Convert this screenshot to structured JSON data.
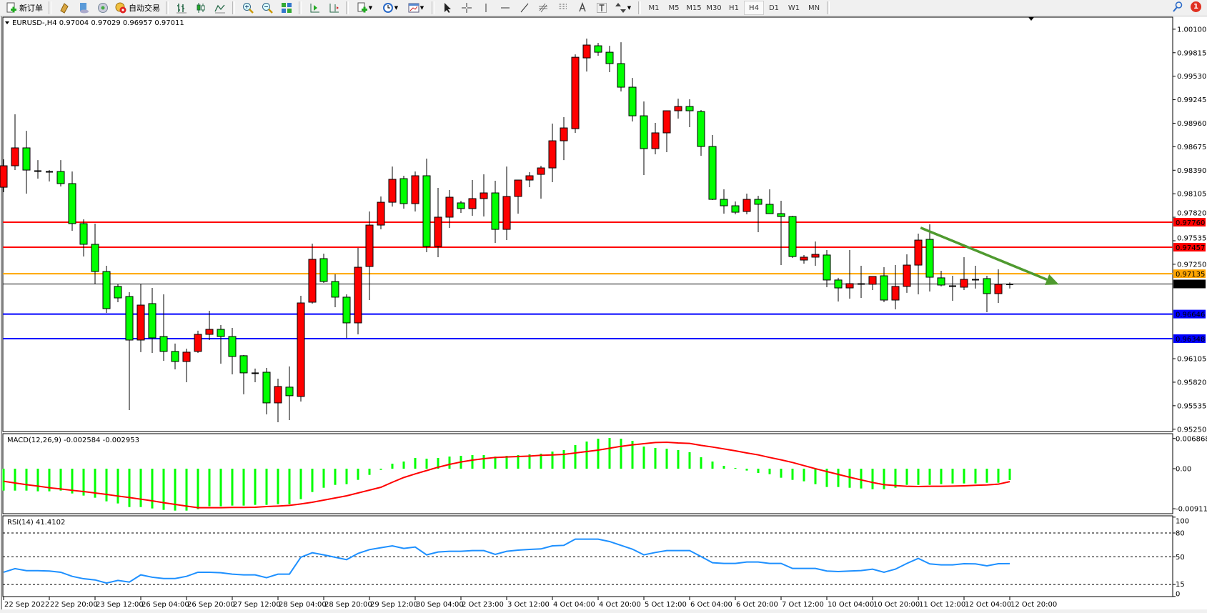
{
  "toolbar": {
    "new_order_label": "新订单",
    "auto_trading_label": "自动交易",
    "icons": [
      "new-order-icon",
      "market-watch-icon",
      "navigator-icon",
      "signals-icon",
      "auto-trading-icon",
      "bar-chart-icon",
      "candlestick-icon",
      "line-chart-icon",
      "zoom-in-icon",
      "zoom-out-icon",
      "tile-windows-icon",
      "auto-scroll-icon",
      "chart-shift-icon",
      "indicators-icon",
      "periods-icon",
      "templates-icon",
      "cursor-icon",
      "crosshair-icon",
      "vertical-line-icon",
      "horizontal-line-icon",
      "trendline-icon",
      "fibonacci-icon",
      "fibo-fan-icon",
      "text-icon",
      "text-label-icon",
      "arrows-icon"
    ],
    "timeframes": [
      "M1",
      "M5",
      "M15",
      "M30",
      "H1",
      "H4",
      "D1",
      "W1",
      "MN"
    ],
    "active_timeframe": "H4",
    "notification_count": "1"
  },
  "chart": {
    "header": "EURUSD-,H4  0.97004 0.97029 0.96957 0.97011",
    "symbol": "EURUSD-",
    "timeframe": "H4",
    "current": {
      "open": 0.97004,
      "high": 0.97029,
      "low": 0.96957,
      "close": 0.97011
    },
    "colors": {
      "up": "#ff0000",
      "down": "#00ff00",
      "outline": "#000000",
      "background": "#ffffff"
    }
  },
  "chart_data": [
    {
      "type": "candlestick",
      "title": "EURUSD-,H4",
      "ohlc": [
        [
          0.98184,
          0.98522,
          0.98124,
          0.98444
        ],
        [
          0.98444,
          0.99068,
          0.98392,
          0.98661
        ],
        [
          0.98661,
          0.98868,
          0.98106,
          0.98392
        ],
        [
          0.98384,
          0.98513,
          0.98288,
          0.9838
        ],
        [
          0.98375,
          0.98392,
          0.98254,
          0.9837
        ],
        [
          0.98375,
          0.98513,
          0.98193,
          0.98228
        ],
        [
          0.98228,
          0.98375,
          0.97656,
          0.97743
        ],
        [
          0.97743,
          0.97795,
          0.97344,
          0.97492
        ],
        [
          0.97492,
          0.97743,
          0.97007,
          0.97162
        ],
        [
          0.97162,
          0.97232,
          0.9666,
          0.96712
        ],
        [
          0.96981,
          0.97007,
          0.9679,
          0.96842
        ],
        [
          0.96859,
          0.96911,
          0.95482,
          0.96331
        ],
        [
          0.96331,
          0.97007,
          0.96184,
          0.96755
        ],
        [
          0.96773,
          0.96963,
          0.96175,
          0.96357
        ],
        [
          0.96374,
          0.96885,
          0.9608,
          0.96193
        ],
        [
          0.96193,
          0.96288,
          0.95976,
          0.96071
        ],
        [
          0.96071,
          0.96227,
          0.9582,
          0.96184
        ],
        [
          0.96193,
          0.96444,
          0.96175,
          0.964
        ],
        [
          0.964,
          0.96686,
          0.96331,
          0.96461
        ],
        [
          0.96461,
          0.96513,
          0.96045,
          0.96374
        ],
        [
          0.96374,
          0.96478,
          0.95915,
          0.96132
        ],
        [
          0.96141,
          0.96149,
          0.95673,
          0.95933
        ],
        [
          0.95933,
          0.95985,
          0.9582,
          0.9593
        ],
        [
          0.95941,
          0.95993,
          0.9543,
          0.95569
        ],
        [
          0.95569,
          0.95863,
          0.95335,
          0.95768
        ],
        [
          0.9576,
          0.96011,
          0.95361,
          0.95656
        ],
        [
          0.95647,
          0.96868,
          0.95586,
          0.96781
        ],
        [
          0.9679,
          0.975,
          0.96773,
          0.9731
        ],
        [
          0.97318,
          0.97379,
          0.97024,
          0.97041
        ],
        [
          0.97041,
          0.97128,
          0.96729,
          0.96851
        ],
        [
          0.96851,
          0.96885,
          0.96357,
          0.96539
        ],
        [
          0.96539,
          0.97448,
          0.964,
          0.97214
        ],
        [
          0.97223,
          0.9789,
          0.96816,
          0.97725
        ],
        [
          0.97725,
          0.98072,
          0.97673,
          0.98002
        ],
        [
          0.98002,
          0.98435,
          0.9795,
          0.9828
        ],
        [
          0.98288,
          0.98323,
          0.97925,
          0.97985
        ],
        [
          0.97985,
          0.98375,
          0.9789,
          0.98323
        ],
        [
          0.98323,
          0.98531,
          0.97396,
          0.97466
        ],
        [
          0.97466,
          0.98176,
          0.97336,
          0.97821
        ],
        [
          0.97821,
          0.9815,
          0.97691,
          0.98063
        ],
        [
          0.97994,
          0.9802,
          0.97873,
          0.97925
        ],
        [
          0.97925,
          0.98271,
          0.97838,
          0.98046
        ],
        [
          0.98046,
          0.9834,
          0.97829,
          0.98115
        ],
        [
          0.98115,
          0.98262,
          0.97509,
          0.97673
        ],
        [
          0.97673,
          0.98435,
          0.97543,
          0.98072
        ],
        [
          0.98072,
          0.98275,
          0.97864,
          0.98271
        ],
        [
          0.98271,
          0.98366,
          0.98184,
          0.98323
        ],
        [
          0.9834,
          0.98444,
          0.98046,
          0.98418
        ],
        [
          0.98418,
          0.98955,
          0.98245,
          0.98747
        ],
        [
          0.98747,
          0.99033,
          0.98513,
          0.98903
        ],
        [
          0.98894,
          0.99795,
          0.98843,
          0.9976
        ],
        [
          0.99752,
          0.99986,
          0.99587,
          0.99908
        ],
        [
          0.99899,
          0.99934,
          0.99778,
          0.99821
        ],
        [
          0.99821,
          0.99899,
          0.99579,
          0.99683
        ],
        [
          0.99683,
          0.99942,
          0.99345,
          0.99397
        ],
        [
          0.99397,
          0.99509,
          0.98981,
          0.9905
        ],
        [
          0.9905,
          0.99224,
          0.98332,
          0.98652
        ],
        [
          0.98652,
          0.98964,
          0.98583,
          0.98843
        ],
        [
          0.98843,
          0.99115,
          0.98609,
          0.99111
        ],
        [
          0.99111,
          0.99258,
          0.99016,
          0.99163
        ],
        [
          0.99163,
          0.9925,
          0.98912,
          0.99111
        ],
        [
          0.99102,
          0.9912,
          0.98565,
          0.98678
        ],
        [
          0.98678,
          0.98817,
          0.98028,
          0.98037
        ],
        [
          0.98037,
          0.98158,
          0.97864,
          0.97959
        ],
        [
          0.97959,
          0.98011,
          0.97855,
          0.97881
        ],
        [
          0.9789,
          0.98106,
          0.97855,
          0.98037
        ],
        [
          0.98037,
          0.9808,
          0.97639,
          0.97977
        ],
        [
          0.97977,
          0.98158,
          0.9786,
          0.97864
        ],
        [
          0.97864,
          0.9802,
          0.9724,
          0.97829
        ],
        [
          0.97829,
          0.97838,
          0.97327,
          0.97344
        ],
        [
          0.97301,
          0.97362,
          0.97258,
          0.97336
        ],
        [
          0.97336,
          0.97526,
          0.97232,
          0.9737
        ],
        [
          0.97362,
          0.97422,
          0.96972,
          0.97059
        ],
        [
          0.97059,
          0.97085,
          0.96799,
          0.96963
        ],
        [
          0.96963,
          0.97422,
          0.96833,
          0.97015
        ],
        [
          0.97015,
          0.97232,
          0.96842,
          0.9701
        ],
        [
          0.97007,
          0.97105,
          0.96937,
          0.97102
        ],
        [
          0.9711,
          0.97214,
          0.9679,
          0.96816
        ],
        [
          0.96816,
          0.9724,
          0.96703,
          0.96981
        ],
        [
          0.96981,
          0.9737,
          0.96903,
          0.9724
        ],
        [
          0.9724,
          0.97621,
          0.96885,
          0.97543
        ],
        [
          0.97552,
          0.97734,
          0.9692,
          0.97093
        ],
        [
          0.97085,
          0.97171,
          0.96981,
          0.96998
        ],
        [
          0.96989,
          0.9711,
          0.96807,
          0.96972
        ],
        [
          0.96972,
          0.97336,
          0.96937,
          0.97067
        ],
        [
          0.97067,
          0.97232,
          0.96955,
          0.9706
        ],
        [
          0.97076,
          0.9711,
          0.96669,
          0.96894
        ],
        [
          0.96894,
          0.97188,
          0.96781,
          0.97007
        ],
        [
          0.97004,
          0.97029,
          0.96957,
          0.97011
        ]
      ],
      "ylim": [
        0.9525,
        1.001
      ],
      "y_ticks": [
        "1.00100",
        "0.99815",
        "0.99530",
        "0.99245",
        "0.98960",
        "0.98675",
        "0.98390",
        "0.98105",
        "0.97820",
        "0.97535",
        "0.97250",
        "0.96105",
        "0.95820",
        "0.95535",
        "0.95250"
      ],
      "x_tick_labels": [
        "22 Sep 2022",
        "22 Sep 20:00",
        "23 Sep 12:00",
        "26 Sep 04:00",
        "26 Sep 20:00",
        "27 Sep 12:00",
        "28 Sep 04:00",
        "28 Sep 20:00",
        "29 Sep 12:00",
        "30 Sep 04:00",
        "2 Oct 23:00",
        "3 Oct 12:00",
        "4 Oct 04:00",
        "4 Oct 20:00",
        "5 Oct 12:00",
        "6 Oct 04:00",
        "6 Oct 20:00",
        "7 Oct 12:00",
        "10 Oct 04:00",
        "10 Oct 20:00",
        "11 Oct 12:00",
        "12 Oct 04:00",
        "12 Oct 20:00"
      ],
      "x_tick_every_bars": 4,
      "horizontal_lines": [
        {
          "price": 0.9776,
          "label": "0.97760",
          "color": "#ff0000"
        },
        {
          "price": 0.97457,
          "label": "0.97457",
          "color": "#ff0000"
        },
        {
          "price": 0.97135,
          "label": "0.97135",
          "color": "#ffa500"
        },
        {
          "price": 0.96646,
          "label": "0.96646",
          "color": "#0000ff"
        },
        {
          "price": 0.96348,
          "label": "0.96348",
          "color": "#0000ff"
        }
      ],
      "current_price": {
        "price": 0.97011,
        "label": "0.97011",
        "color": "#000000"
      },
      "trend_arrow": {
        "from": {
          "bar": 80.2,
          "price": 0.97693
        },
        "to": {
          "bar": 92.3,
          "price": 0.97004
        },
        "color": "#4f9a2f"
      }
    },
    {
      "type": "bar+line",
      "title": "MACD(12,26,9) -0.002584 -0.002953",
      "ylim": [
        -0.009114,
        0.006868
      ],
      "y_ticks": [
        "0.006868",
        "0.00",
        "-0.009114"
      ],
      "histogram_color": "#00ff00",
      "signal_color": "#ff0000",
      "histogram": [
        -0.00499,
        -0.00499,
        -0.00499,
        -0.00515,
        -0.00515,
        -0.00499,
        -0.00564,
        -0.00612,
        -0.00661,
        -0.00743,
        -0.00791,
        -0.00873,
        -0.00873,
        -0.00905,
        -0.00938,
        -0.00954,
        -0.00954,
        -0.00921,
        -0.00856,
        -0.00856,
        -0.0084,
        -0.0084,
        -0.00824,
        -0.00824,
        -0.00808,
        -0.00808,
        -0.00694,
        -0.00531,
        -0.00434,
        -0.00369,
        -0.00352,
        -0.00255,
        -0.00141,
        -0.00027,
        0.00114,
        0.00163,
        0.00244,
        0.00228,
        0.00244,
        0.00276,
        0.00293,
        0.00309,
        0.00309,
        0.00276,
        0.00293,
        0.00309,
        0.00325,
        0.00341,
        0.0039,
        0.00423,
        0.00537,
        0.00618,
        0.00683,
        0.00699,
        0.00683,
        0.00634,
        0.00504,
        0.00472,
        0.00455,
        0.00423,
        0.00374,
        0.0026,
        0.00163,
        0.00065,
        0.00016,
        -0.00043,
        -0.00098,
        -0.00125,
        -0.00206,
        -0.00255,
        -0.00287,
        -0.00352,
        -0.00417,
        -0.00417,
        -0.00434,
        -0.0045,
        -0.00466,
        -0.00466,
        -0.00434,
        -0.00369,
        -0.00369,
        -0.00369,
        -0.00352,
        -0.00336,
        -0.00336,
        -0.00336,
        -0.0032,
        -0.0032,
        -0.002584
      ],
      "signal": [
        -0.00287,
        -0.00325,
        -0.00363,
        -0.00396,
        -0.00434,
        -0.00461,
        -0.00493,
        -0.0052,
        -0.00553,
        -0.00585,
        -0.00623,
        -0.00656,
        -0.00694,
        -0.00732,
        -0.00775,
        -0.00813,
        -0.00851,
        -0.00889,
        -0.00889,
        -0.00889,
        -0.00883,
        -0.00883,
        -0.00878,
        -0.00862,
        -0.00851,
        -0.00835,
        -0.00802,
        -0.00764,
        -0.00715,
        -0.00667,
        -0.00618,
        -0.00553,
        -0.00488,
        -0.00423,
        -0.00309,
        -0.00201,
        -0.00119,
        -0.00043,
        0.00033,
        0.00098,
        0.00152,
        0.00195,
        0.00228,
        0.00255,
        0.00266,
        0.00276,
        0.00287,
        0.00304,
        0.00314,
        0.00325,
        0.00358,
        0.0039,
        0.00423,
        0.00466,
        0.00509,
        0.00542,
        0.00569,
        0.00596,
        0.00602,
        0.00585,
        0.00575,
        0.00531,
        0.00493,
        0.0045,
        0.00407,
        0.00358,
        0.00314,
        0.00255,
        0.00201,
        0.00141,
        0.0007,
        0,
        -0.00065,
        -0.0013,
        -0.00195,
        -0.00255,
        -0.00314,
        -0.00363,
        -0.00385,
        -0.00401,
        -0.00407,
        -0.00401,
        -0.00401,
        -0.00396,
        -0.0039,
        -0.00379,
        -0.00369,
        -0.00352,
        -0.002953
      ]
    },
    {
      "type": "line",
      "title": "RSI(14) 41.4102",
      "ylim": [
        0,
        100
      ],
      "y_ticks": [
        "100",
        "80",
        "50",
        "15",
        "0"
      ],
      "levels": [
        80,
        50,
        15
      ],
      "line_color": "#1e90ff",
      "values": [
        30.5,
        35,
        32.5,
        32.5,
        32,
        30.5,
        25.3,
        22.3,
        20.8,
        16.9,
        20.2,
        18.1,
        27.2,
        24.2,
        22.6,
        22.6,
        25.3,
        30.5,
        30.5,
        29.9,
        28.1,
        27.2,
        27.2,
        23.6,
        28.1,
        28.1,
        49.4,
        55.1,
        52.4,
        49.4,
        46.4,
        54.2,
        59,
        61.4,
        63.8,
        60.5,
        62.3,
        52.4,
        56,
        56.9,
        56.9,
        57.8,
        57.8,
        53,
        56.9,
        58.4,
        59.3,
        59.9,
        63.8,
        64.4,
        72.2,
        72.2,
        72.2,
        69.2,
        64.4,
        59.6,
        52.4,
        55.4,
        57.8,
        57.8,
        57.8,
        50.3,
        42.5,
        41.6,
        41.6,
        43.4,
        43.4,
        41.6,
        41.6,
        35.3,
        35.3,
        35.3,
        32,
        31.4,
        32,
        32.6,
        34.4,
        30.5,
        34.4,
        41.6,
        47.9,
        41,
        39.8,
        39.8,
        41.3,
        41,
        38.6,
        41.3,
        41.41
      ]
    }
  ]
}
